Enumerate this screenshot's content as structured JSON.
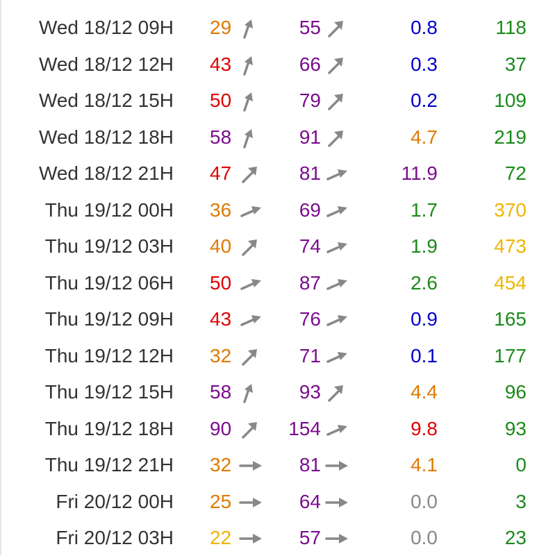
{
  "colors": {
    "date_text": "#333333",
    "orange": "#e07a00",
    "red": "#e00000",
    "purple": "#7b0d8e",
    "blue": "#0000cc",
    "green": "#1a8a1a",
    "gold": "#f0b400",
    "gray": "#888888",
    "arrow": "#888888"
  },
  "rows": [
    {
      "date": "Wed 18/12 09H",
      "gust": "29",
      "gust_color": "orange",
      "gust_arrow": "up",
      "max": "55",
      "max_color": "purple",
      "max_arrow": "diag",
      "precip": "0.8",
      "precip_color": "blue",
      "cloud": "118",
      "cloud_color": "green"
    },
    {
      "date": "Wed 18/12 12H",
      "gust": "43",
      "gust_color": "red",
      "gust_arrow": "up",
      "max": "66",
      "max_color": "purple",
      "max_arrow": "diag",
      "precip": "0.3",
      "precip_color": "blue",
      "cloud": "37",
      "cloud_color": "green"
    },
    {
      "date": "Wed 18/12 15H",
      "gust": "50",
      "gust_color": "red",
      "gust_arrow": "up",
      "max": "79",
      "max_color": "purple",
      "max_arrow": "diag",
      "precip": "0.2",
      "precip_color": "blue",
      "cloud": "109",
      "cloud_color": "green"
    },
    {
      "date": "Wed 18/12 18H",
      "gust": "58",
      "gust_color": "purple",
      "gust_arrow": "up",
      "max": "91",
      "max_color": "purple",
      "max_arrow": "diag",
      "precip": "4.7",
      "precip_color": "orange",
      "cloud": "219",
      "cloud_color": "green"
    },
    {
      "date": "Wed 18/12 21H",
      "gust": "47",
      "gust_color": "red",
      "gust_arrow": "diag",
      "max": "81",
      "max_color": "purple",
      "max_arrow": "low",
      "precip": "11.9",
      "precip_color": "purple",
      "cloud": "72",
      "cloud_color": "green"
    },
    {
      "date": "Thu 19/12 00H",
      "gust": "36",
      "gust_color": "orange",
      "gust_arrow": "low",
      "max": "69",
      "max_color": "purple",
      "max_arrow": "low",
      "precip": "1.7",
      "precip_color": "green",
      "cloud": "370",
      "cloud_color": "gold"
    },
    {
      "date": "Thu 19/12 03H",
      "gust": "40",
      "gust_color": "orange",
      "gust_arrow": "diag",
      "max": "74",
      "max_color": "purple",
      "max_arrow": "low",
      "precip": "1.9",
      "precip_color": "green",
      "cloud": "473",
      "cloud_color": "gold"
    },
    {
      "date": "Thu 19/12 06H",
      "gust": "50",
      "gust_color": "red",
      "gust_arrow": "low",
      "max": "87",
      "max_color": "purple",
      "max_arrow": "low",
      "precip": "2.6",
      "precip_color": "green",
      "cloud": "454",
      "cloud_color": "gold"
    },
    {
      "date": "Thu 19/12 09H",
      "gust": "43",
      "gust_color": "red",
      "gust_arrow": "low",
      "max": "76",
      "max_color": "purple",
      "max_arrow": "low",
      "precip": "0.9",
      "precip_color": "blue",
      "cloud": "165",
      "cloud_color": "green"
    },
    {
      "date": "Thu 19/12 12H",
      "gust": "32",
      "gust_color": "orange",
      "gust_arrow": "diag",
      "max": "71",
      "max_color": "purple",
      "max_arrow": "low",
      "precip": "0.1",
      "precip_color": "blue",
      "cloud": "177",
      "cloud_color": "green"
    },
    {
      "date": "Thu 19/12 15H",
      "gust": "58",
      "gust_color": "purple",
      "gust_arrow": "up",
      "max": "93",
      "max_color": "purple",
      "max_arrow": "diag",
      "precip": "4.4",
      "precip_color": "orange",
      "cloud": "96",
      "cloud_color": "green"
    },
    {
      "date": "Thu 19/12 18H",
      "gust": "90",
      "gust_color": "purple",
      "gust_arrow": "diag",
      "max": "154",
      "max_color": "purple",
      "max_arrow": "low",
      "precip": "9.8",
      "precip_color": "red",
      "cloud": "93",
      "cloud_color": "green"
    },
    {
      "date": "Thu 19/12 21H",
      "gust": "32",
      "gust_color": "orange",
      "gust_arrow": "right",
      "max": "81",
      "max_color": "purple",
      "max_arrow": "right",
      "precip": "4.1",
      "precip_color": "orange",
      "cloud": "0",
      "cloud_color": "green"
    },
    {
      "date": "Fri 20/12 00H",
      "gust": "25",
      "gust_color": "orange",
      "gust_arrow": "right",
      "max": "64",
      "max_color": "purple",
      "max_arrow": "right",
      "precip": "0.0",
      "precip_color": "gray",
      "cloud": "3",
      "cloud_color": "green"
    },
    {
      "date": "Fri 20/12 03H",
      "gust": "22",
      "gust_color": "gold",
      "gust_arrow": "right",
      "max": "57",
      "max_color": "purple",
      "max_arrow": "right",
      "precip": "0.0",
      "precip_color": "gray",
      "cloud": "23",
      "cloud_color": "green"
    }
  ]
}
